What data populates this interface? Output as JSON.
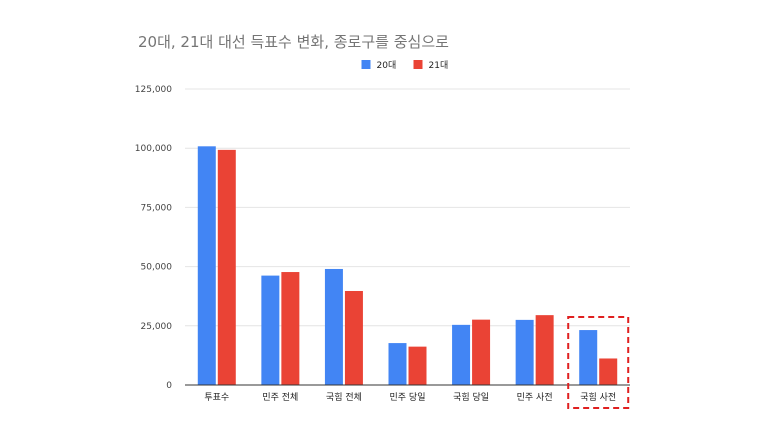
{
  "chart_data": {
    "type": "bar",
    "title": "20대, 21대 대선 득표수 변화, 종로구를 중심으로",
    "xlabel": "",
    "ylabel": "",
    "categories": [
      "투표수",
      "민주 전체",
      "국힘 전체",
      "민주 당일",
      "국힘 당일",
      "민주 사전",
      "국힘 사전"
    ],
    "series": [
      {
        "name": "20대",
        "color": "#4285f4",
        "values": [
          100800,
          46200,
          49000,
          17700,
          25400,
          27500,
          23200
        ]
      },
      {
        "name": "21대",
        "color": "#ea4335",
        "values": [
          99300,
          47700,
          39700,
          16200,
          27600,
          29500,
          11200
        ]
      }
    ],
    "y_ticks": [
      "0",
      "25,000",
      "50,000",
      "75,000",
      "100,000",
      "125,000"
    ],
    "ylim": [
      0,
      125000
    ],
    "grid": true,
    "legend_position": "top-center",
    "highlight": {
      "category": "국힘 사전",
      "style": "dashed",
      "color": "#e02020"
    }
  }
}
